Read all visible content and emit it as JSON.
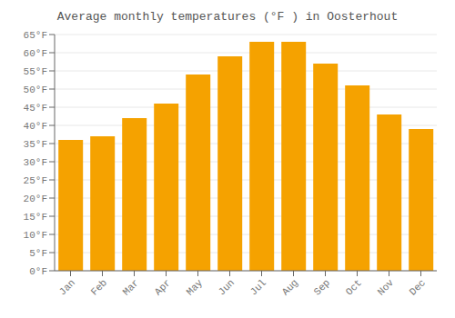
{
  "chart_data": {
    "type": "bar",
    "title": "Average monthly temperatures (°F ) in Oosterhout",
    "categories": [
      "Jan",
      "Feb",
      "Mar",
      "Apr",
      "May",
      "Jun",
      "Jul",
      "Aug",
      "Sep",
      "Oct",
      "Nov",
      "Dec"
    ],
    "values": [
      36,
      37,
      42,
      46,
      54,
      59,
      63,
      63,
      57,
      51,
      43,
      39
    ],
    "color": "#F5A200",
    "ylim": [
      0,
      65
    ],
    "yticks": [
      {
        "value": 0,
        "label": "0°F"
      },
      {
        "value": 5,
        "label": "5°F"
      },
      {
        "value": 10,
        "label": "10°F"
      },
      {
        "value": 15,
        "label": "15°F"
      },
      {
        "value": 20,
        "label": "20°F"
      },
      {
        "value": 25,
        "label": "25°F"
      },
      {
        "value": 30,
        "label": "30°F"
      },
      {
        "value": 35,
        "label": "35°F"
      },
      {
        "value": 40,
        "label": "40°F"
      },
      {
        "value": 45,
        "label": "45°F"
      },
      {
        "value": 50,
        "label": "50°F"
      },
      {
        "value": 55,
        "label": "55°F"
      },
      {
        "value": 60,
        "label": "60°F"
      },
      {
        "value": 65,
        "label": "65°F"
      }
    ],
    "grid": true
  }
}
